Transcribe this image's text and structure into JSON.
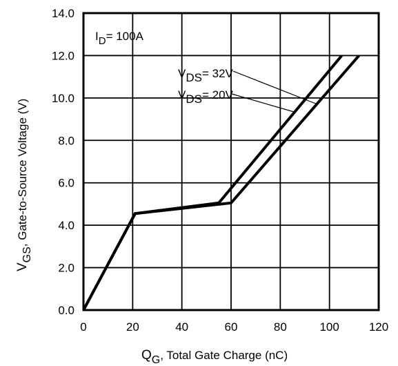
{
  "chart_data": {
    "type": "line",
    "xlabel_main": "Q",
    "xlabel_sub": "G",
    "xlabel_rest": ",  Total Gate Charge (nC)",
    "ylabel_main": "V",
    "ylabel_sub": "GS",
    "ylabel_rest": ", Gate-to-Source Voltage (V)",
    "xlim": [
      0,
      120
    ],
    "ylim": [
      0,
      14
    ],
    "x_ticks": [
      0,
      20,
      40,
      60,
      80,
      100,
      120
    ],
    "x_tick_labels": [
      "0",
      "20",
      "40",
      "60",
      "80",
      "100",
      "120"
    ],
    "y_ticks": [
      0,
      2,
      4,
      6,
      8,
      10,
      12,
      14
    ],
    "y_tick_labels": [
      "0.0",
      "2.0",
      "4.0",
      "6.0",
      "8.0",
      "10.0",
      "12.0",
      "14.0"
    ],
    "grid": true,
    "annotation_id_main": "I",
    "annotation_id_sub": "D",
    "annotation_id_rest": "= 100A",
    "series": [
      {
        "label_main": "V",
        "label_sub": "DS",
        "label_rest": "= 32V",
        "x": [
          0,
          21,
          60,
          112
        ],
        "y": [
          0,
          4.55,
          5.05,
          12.0
        ]
      },
      {
        "label_main": "V",
        "label_sub": "DS",
        "label_rest": "= 20V",
        "x": [
          0,
          21,
          55,
          105
        ],
        "y": [
          0,
          4.55,
          5.05,
          12.0
        ]
      }
    ]
  }
}
